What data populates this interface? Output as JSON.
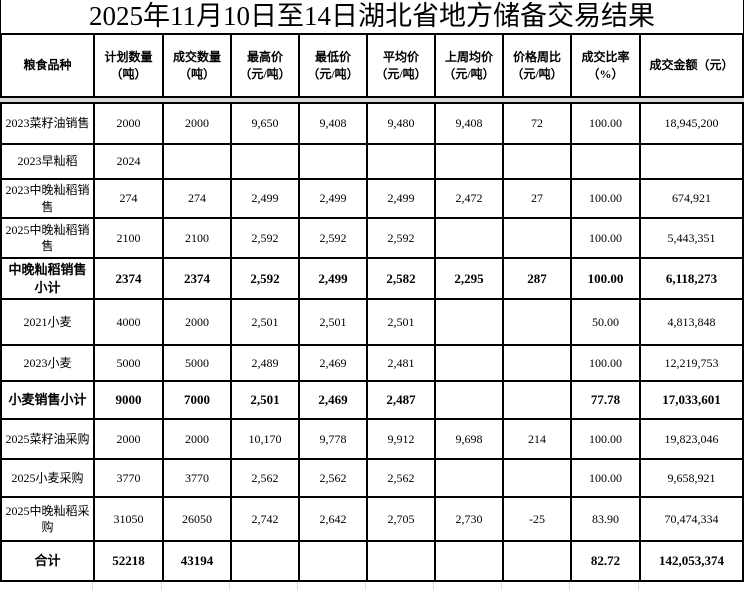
{
  "title": "2025年11月10日至14日湖北省地方储备交易结果",
  "table": {
    "headers": [
      "粮食品种",
      "计划数量\n（吨）",
      "成交数量\n（吨）",
      "最高价\n（元/吨）",
      "最低价\n（元/吨）",
      "平均价\n（元/吨）",
      "上周均价\n（元/吨）",
      "价格周比\n（元/吨）",
      "成交比率\n（%）",
      "成交金额（元）"
    ],
    "rows": [
      {
        "bold": false,
        "cells": [
          "2023菜籽油销售",
          "2000",
          "2000",
          "9,650",
          "9,408",
          "9,480",
          "9,408",
          "72",
          "100.00",
          "18,945,200"
        ]
      },
      {
        "bold": false,
        "cells": [
          "2023早籼稻",
          "2024",
          "",
          "",
          "",
          "",
          "",
          "",
          "",
          ""
        ]
      },
      {
        "bold": false,
        "cells": [
          "2023中晚籼稻销售",
          "274",
          "274",
          "2,499",
          "2,499",
          "2,499",
          "2,472",
          "27",
          "100.00",
          "674,921"
        ]
      },
      {
        "bold": false,
        "cells": [
          "2025中晚籼稻销售",
          "2100",
          "2100",
          "2,592",
          "2,592",
          "2,592",
          "",
          "",
          "100.00",
          "5,443,351"
        ]
      },
      {
        "bold": true,
        "cells": [
          "中晚籼稻销售小计",
          "2374",
          "2374",
          "2,592",
          "2,499",
          "2,582",
          "2,295",
          "287",
          "100.00",
          "6,118,273"
        ]
      },
      {
        "bold": false,
        "cells": [
          "2021小麦",
          "4000",
          "2000",
          "2,501",
          "2,501",
          "2,501",
          "",
          "",
          "50.00",
          "4,813,848"
        ]
      },
      {
        "bold": false,
        "cells": [
          "2023小麦",
          "5000",
          "5000",
          "2,489",
          "2,469",
          "2,481",
          "",
          "",
          "100.00",
          "12,219,753"
        ]
      },
      {
        "bold": true,
        "cells": [
          "小麦销售小计",
          "9000",
          "7000",
          "2,501",
          "2,469",
          "2,487",
          "",
          "",
          "77.78",
          "17,033,601"
        ]
      },
      {
        "bold": false,
        "cells": [
          "2025菜籽油采购",
          "2000",
          "2000",
          "10,170",
          "9,778",
          "9,912",
          "9,698",
          "214",
          "100.00",
          "19,823,046"
        ]
      },
      {
        "bold": false,
        "cells": [
          "2025小麦采购",
          "3770",
          "3770",
          "2,562",
          "2,562",
          "2,562",
          "",
          "",
          "100.00",
          "9,658,921"
        ]
      },
      {
        "bold": false,
        "cells": [
          "2025中晚籼稻采购",
          "31050",
          "26050",
          "2,742",
          "2,642",
          "2,705",
          "2,730",
          "-25",
          "83.90",
          "70,474,334"
        ]
      },
      {
        "bold": true,
        "cells": [
          "合计",
          "52218",
          "43194",
          "",
          "",
          "",
          "",
          "",
          "82.72",
          "142,053,374"
        ]
      }
    ]
  },
  "colors": {
    "border": "#000000",
    "freeze_divider": "#d9d9d9",
    "background": "#ffffff",
    "text": "#000000"
  }
}
